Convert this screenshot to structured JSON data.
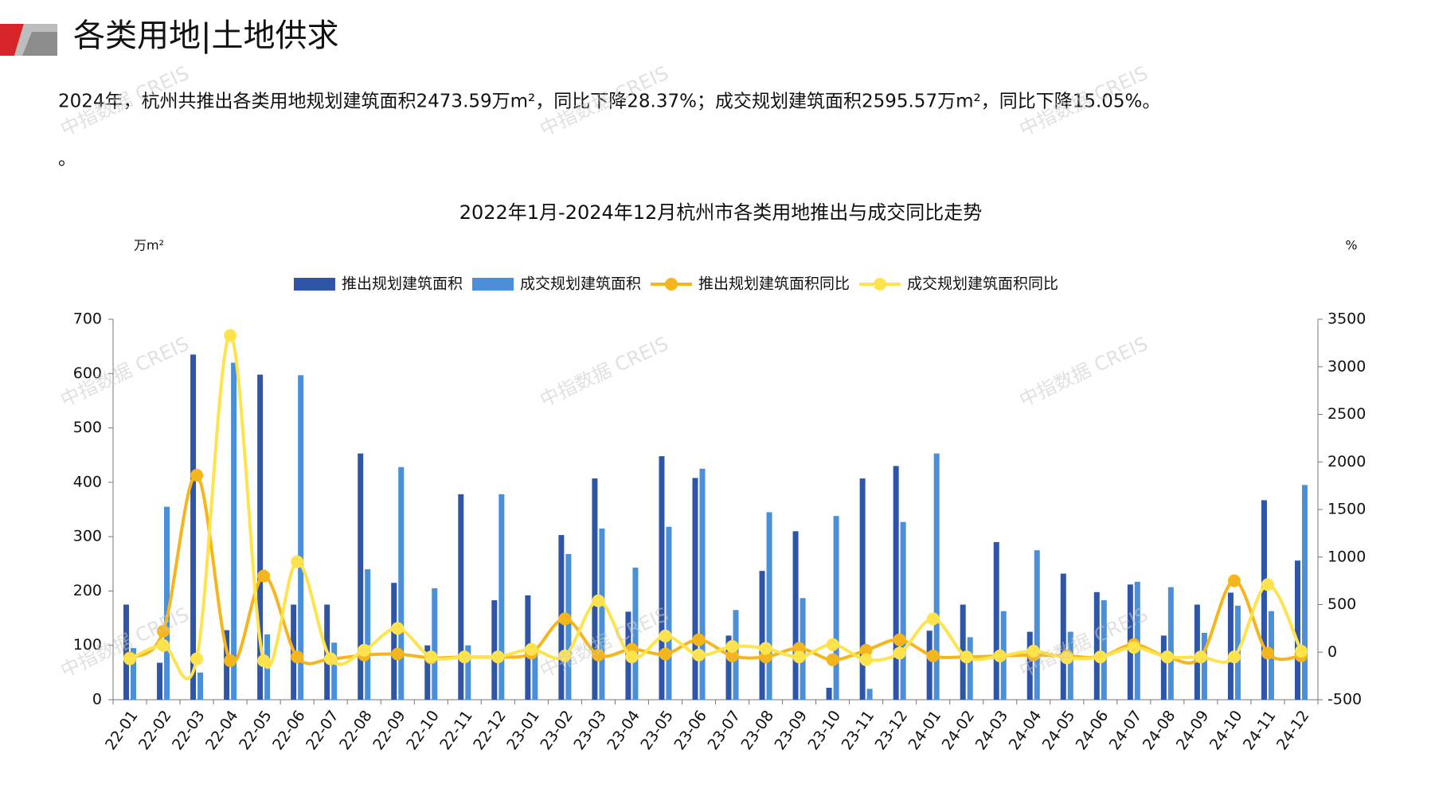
{
  "header": {
    "title": "各类用地|土地供求"
  },
  "paragraph": "2024年，杭州共推出各类用地规划建筑面积2473.59万m²，同比下降28.37%；成交规划建筑面积2595.57万m²，同比下降15.05%。",
  "paragraph_end": "。",
  "watermark": "中指数据 CREIS",
  "chart_data": {
    "type": "bar",
    "title": "2022年1月-2024年12月杭州市各类用地推出与成交同比走势",
    "y_unit": "万m²",
    "y2_unit": "%",
    "categories": [
      "22-01",
      "22-02",
      "22-03",
      "22-04",
      "22-05",
      "22-06",
      "22-07",
      "22-08",
      "22-09",
      "22-10",
      "22-11",
      "22-12",
      "23-01",
      "23-02",
      "23-03",
      "23-04",
      "23-05",
      "23-06",
      "23-07",
      "23-08",
      "23-09",
      "23-10",
      "23-11",
      "23-12",
      "24-01",
      "24-02",
      "24-03",
      "24-04",
      "24-05",
      "24-06",
      "24-07",
      "24-08",
      "24-09",
      "24-10",
      "24-11",
      "24-12"
    ],
    "series": [
      {
        "name": "推出规划建筑面积",
        "type": "bar",
        "color": "#2f56a6",
        "values": [
          175,
          68,
          635,
          128,
          598,
          175,
          175,
          453,
          215,
          100,
          378,
          183,
          192,
          303,
          407,
          162,
          448,
          408,
          118,
          237,
          310,
          22,
          407,
          430,
          127,
          175,
          290,
          125,
          232,
          198,
          212,
          118,
          175,
          197,
          367,
          256
        ]
      },
      {
        "name": "成交规划建筑面积",
        "type": "bar",
        "color": "#4a8fd8",
        "values": [
          95,
          355,
          50,
          620,
          120,
          597,
          105,
          240,
          428,
          205,
          100,
          378,
          95,
          268,
          315,
          243,
          318,
          425,
          165,
          345,
          187,
          338,
          20,
          327,
          453,
          115,
          163,
          275,
          125,
          183,
          217,
          207,
          123,
          173,
          163,
          395
        ]
      },
      {
        "name": "推出规划建筑面积同比",
        "type": "line",
        "axis": "y2",
        "color": "#f5b51c",
        "values": [
          -60,
          220,
          1860,
          -90,
          800,
          -50,
          -70,
          -30,
          -20,
          -60,
          -50,
          -50,
          -10,
          350,
          -30,
          30,
          -20,
          130,
          -40,
          -50,
          40,
          -80,
          20,
          130,
          -40,
          -50,
          -40,
          -30,
          -40,
          -50,
          80,
          -50,
          -50,
          750,
          -10,
          -40
        ]
      },
      {
        "name": "成交规划建筑面积同比",
        "type": "line",
        "axis": "y2",
        "color": "#ffe34d",
        "values": [
          -70,
          70,
          -70,
          3330,
          -90,
          950,
          -70,
          20,
          250,
          -50,
          -50,
          -50,
          30,
          -40,
          540,
          -50,
          170,
          -30,
          60,
          40,
          -50,
          80,
          -80,
          -10,
          350,
          -50,
          -40,
          10,
          -60,
          -50,
          50,
          -50,
          -50,
          -50,
          710,
          10
        ]
      }
    ],
    "ylim": [
      0,
      700
    ],
    "yticks": [
      0,
      100,
      200,
      300,
      400,
      500,
      600,
      700
    ],
    "y2lim": [
      -500,
      3500
    ],
    "y2ticks": [
      -500,
      0,
      500,
      1000,
      1500,
      2000,
      2500,
      3000,
      3500
    ],
    "legend": "top"
  }
}
